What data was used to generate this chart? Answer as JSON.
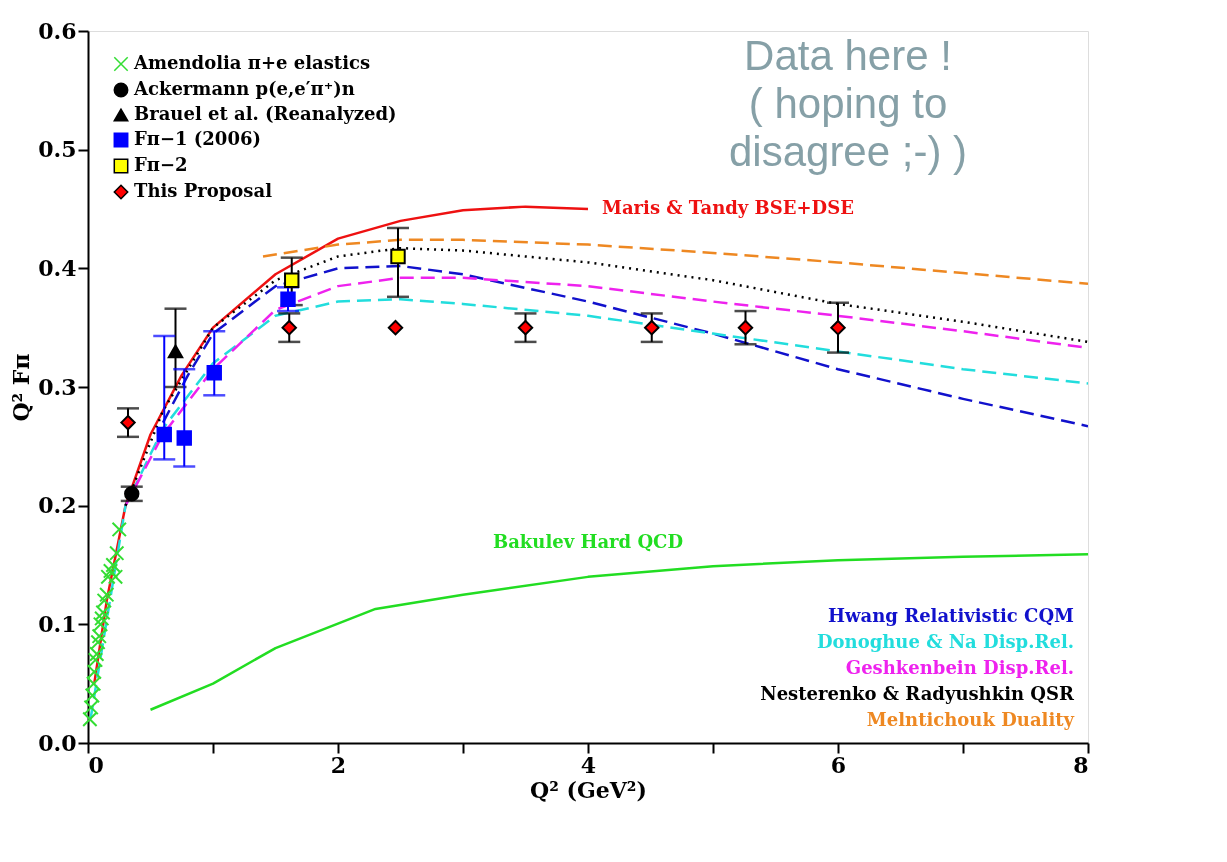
{
  "chart_data": {
    "type": "scatter",
    "xlabel": "Q² (GeV²)",
    "ylabel": "Q² Fπ",
    "xlim": [
      0,
      8
    ],
    "ylim": [
      0,
      0.6
    ],
    "xticks": [
      0,
      {
        "value": 1,
        "label": null
      },
      2,
      {
        "value": 3,
        "label": null
      },
      4,
      {
        "value": 5,
        "label": null
      },
      6,
      {
        "value": 7,
        "label": null
      },
      8
    ],
    "yticks": [
      {
        "value": 0,
        "label": "0.0"
      },
      0.1,
      0.2,
      0.3,
      0.4,
      0.5,
      0.6
    ],
    "legend": "top left",
    "grid": false,
    "annotations": [
      "Data here !\n( hoping to\ndisagree ;-) )"
    ],
    "series": [
      {
        "name": "Maris & Tandy BSE+DSE",
        "type": "line",
        "line_style": "solid",
        "color": "#ee1111",
        "x": [
          0.05,
          0.15,
          0.3,
          0.5,
          0.75,
          1.0,
          1.5,
          2.0,
          2.5,
          3.0,
          3.5,
          4.0
        ],
        "values": [
          0.05,
          0.12,
          0.2,
          0.26,
          0.31,
          0.35,
          0.395,
          0.425,
          0.44,
          0.449,
          0.452,
          0.45
        ]
      },
      {
        "name": "Bakulev Hard QCD",
        "type": "line",
        "line_style": "solid",
        "color": "#22dd22",
        "x": [
          0.5,
          1.0,
          1.5,
          2.3,
          3.0,
          4.0,
          5.0,
          6.0,
          7.0,
          8.0
        ],
        "values": [
          0.028,
          0.05,
          0.08,
          0.113,
          0.125,
          0.14,
          0.149,
          0.154,
          0.157,
          0.159
        ]
      },
      {
        "name": "Hwang Relativistic CQM",
        "type": "line",
        "line_style": "dashed",
        "color": "#1111cc",
        "x": [
          0.6,
          0.8,
          1.0,
          1.5,
          2.0,
          2.5,
          3.0,
          4.0,
          5.0,
          6.0,
          7.0,
          8.0
        ],
        "values": [
          0.27,
          0.31,
          0.345,
          0.385,
          0.4,
          0.402,
          0.395,
          0.372,
          0.345,
          0.315,
          0.29,
          0.267
        ]
      },
      {
        "name": "Donoghue & Na Disp.Rel.",
        "type": "line",
        "line_style": "dashed",
        "color": "#22dddd",
        "x": [
          0.02,
          0.3,
          0.6,
          1.0,
          1.5,
          2.0,
          2.5,
          3.0,
          4.0,
          5.0,
          6.0,
          7.0,
          8.0
        ],
        "values": [
          0.02,
          0.2,
          0.265,
          0.32,
          0.36,
          0.372,
          0.374,
          0.37,
          0.36,
          0.345,
          0.33,
          0.315,
          0.303
        ]
      },
      {
        "name": "Geshkenbein Disp.Rel.",
        "type": "line",
        "line_style": "dashed",
        "color": "#ee22ee",
        "x": [
          0.3,
          0.6,
          1.0,
          1.5,
          2.0,
          2.5,
          3.0,
          4.0,
          5.0,
          6.0,
          7.0,
          8.0
        ],
        "values": [
          0.2,
          0.26,
          0.315,
          0.365,
          0.385,
          0.392,
          0.392,
          0.385,
          0.372,
          0.36,
          0.347,
          0.333
        ]
      },
      {
        "name": "Nesterenko & Radyushkin QSR",
        "type": "line",
        "line_style": "dotted",
        "color": "#000000",
        "x": [
          0.3,
          0.6,
          1.0,
          1.5,
          2.0,
          2.5,
          3.0,
          4.0,
          5.0,
          6.0,
          7.0,
          8.0
        ],
        "values": [
          0.2,
          0.28,
          0.35,
          0.39,
          0.41,
          0.417,
          0.415,
          0.405,
          0.39,
          0.37,
          0.355,
          0.338
        ]
      },
      {
        "name": "Melntichouk Duality",
        "type": "line",
        "line_style": "dashed",
        "color": "#ee8822",
        "x": [
          1.4,
          2.0,
          2.5,
          3.0,
          4.0,
          5.0,
          6.0,
          7.0,
          8.0
        ],
        "values": [
          0.41,
          0.42,
          0.424,
          0.424,
          0.42,
          0.413,
          0.405,
          0.396,
          0.387
        ]
      },
      {
        "name": "Amendolia π+e elastics",
        "marker": "cross",
        "color": "#33dd33",
        "x": [
          0.015,
          0.025,
          0.035,
          0.045,
          0.05,
          0.06,
          0.07,
          0.08,
          0.09,
          0.1,
          0.11,
          0.12,
          0.13,
          0.15,
          0.16,
          0.18,
          0.2,
          0.22,
          0.23,
          0.25
        ],
        "values": [
          0.02,
          0.03,
          0.04,
          0.05,
          0.06,
          0.07,
          0.075,
          0.085,
          0.09,
          0.1,
          0.105,
          0.11,
          0.12,
          0.125,
          0.14,
          0.145,
          0.15,
          0.14,
          0.16,
          0.18
        ]
      },
      {
        "name": "Ackermann p(e,e′π⁺)n",
        "marker": "circle",
        "color": "#000000",
        "x": [
          0.35
        ],
        "values": [
          0.21
        ],
        "errors": [
          0.006
        ]
      },
      {
        "name": "Brauel et al. (Reanalyzed)",
        "marker": "triangle",
        "color": "#000000",
        "x": [
          0.7
        ],
        "values": [
          0.33
        ],
        "errors": [
          [
            0.3,
            0.366
          ]
        ]
      },
      {
        "name": "Fπ−1 (2006)",
        "marker": "square",
        "color": "#0000ff",
        "x": [
          0.61,
          0.77,
          1.01,
          1.6
        ],
        "values": [
          0.26,
          0.257,
          0.312,
          0.374
        ],
        "errors": [
          [
            0.239,
            0.343
          ],
          [
            0.233,
            0.315
          ],
          [
            0.293,
            0.347
          ],
          0.01
        ]
      },
      {
        "name": "Fπ−2",
        "marker": "square",
        "color": "#ffff00",
        "x": [
          1.63,
          2.48
        ],
        "values": [
          0.39,
          0.41
        ],
        "errors": [
          [
            0.369,
            0.409
          ],
          [
            0.376,
            0.434
          ]
        ]
      },
      {
        "name": "This Proposal",
        "marker": "diamond",
        "color": "#ff0000",
        "x": [
          0.32,
          1.61,
          2.46,
          3.5,
          4.51,
          5.26,
          6.0
        ],
        "values": [
          0.27,
          0.35,
          0.35,
          0.35,
          0.35,
          0.35,
          0.35
        ],
        "errors": [
          0.012,
          0.012,
          null,
          0.012,
          0.012,
          0.014,
          0.021
        ]
      }
    ]
  }
}
